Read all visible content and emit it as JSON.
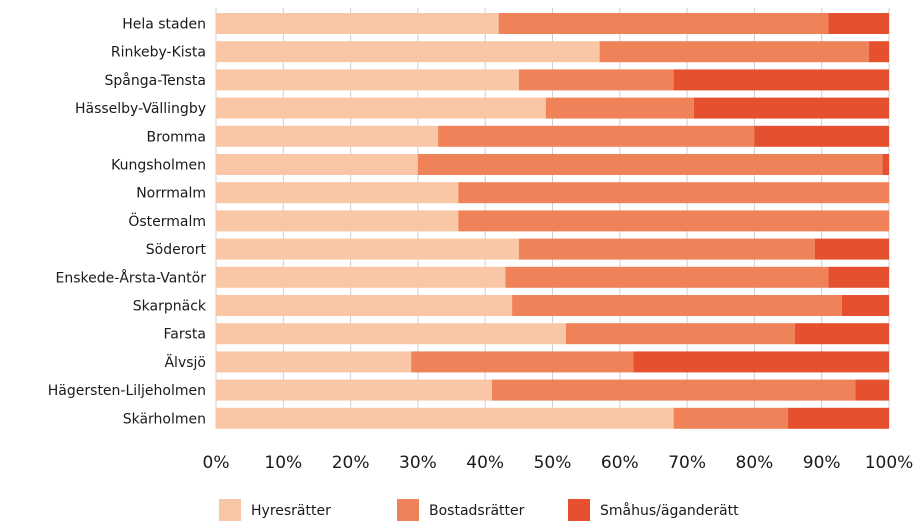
{
  "chart_data": {
    "type": "bar",
    "orientation": "horizontal",
    "stacked": true,
    "normalized": true,
    "title": "",
    "xlabel": "",
    "ylabel": "",
    "xlim": [
      0,
      100
    ],
    "grid": true,
    "legend_position": "bottom",
    "x_ticks": [
      "0%",
      "10%",
      "20%",
      "30%",
      "40%",
      "50%",
      "60%",
      "70%",
      "80%",
      "90%",
      "100%"
    ],
    "categories": [
      "Hela staden",
      "Rinkeby-Kista",
      "Spånga-Tensta",
      "Hässelby-Vällingby",
      "Bromma",
      "Kungsholmen",
      "Norrmalm",
      "Östermalm",
      "Söderort",
      "Enskede-Årsta-Vantör",
      "Skarpnäck",
      "Farsta",
      "Älvsjö",
      "Hägersten-Liljeholmen",
      "Skärholmen"
    ],
    "series": [
      {
        "name": "Hyresrätter",
        "color": "#f9c7a5",
        "values": [
          42,
          57,
          45,
          49,
          33,
          30,
          36,
          36,
          45,
          43,
          44,
          52,
          29,
          41,
          68
        ]
      },
      {
        "name": "Bostadsrätter",
        "color": "#ef8258",
        "values": [
          49,
          40,
          23,
          22,
          47,
          69,
          64,
          64,
          44,
          48,
          49,
          34,
          33,
          54,
          17
        ]
      },
      {
        "name": "Småhus/äganderätt",
        "color": "#e5512f",
        "values": [
          9,
          3,
          32,
          29,
          20,
          1,
          0,
          0,
          11,
          9,
          7,
          14,
          38,
          5,
          15
        ]
      }
    ]
  }
}
